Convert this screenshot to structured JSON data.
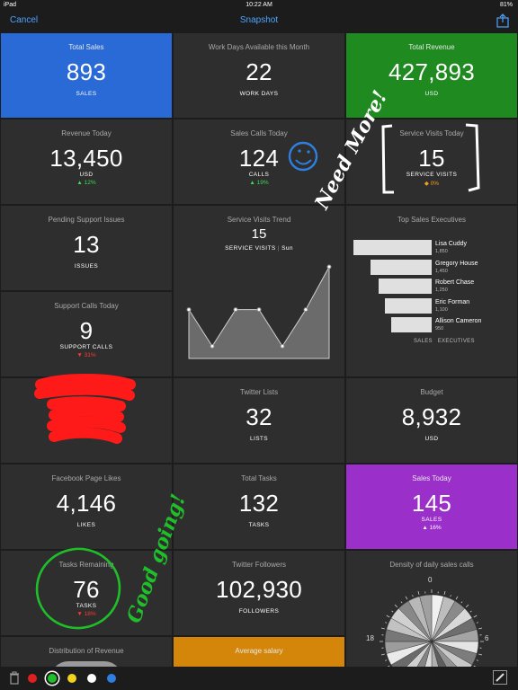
{
  "status": {
    "device": "iPad",
    "time": "10:22 AM",
    "battery": "81%"
  },
  "nav": {
    "cancel": "Cancel",
    "title": "Snapshot"
  },
  "tiles": {
    "total_sales": {
      "title": "Total Sales",
      "value": "893",
      "unit": "SALES"
    },
    "work_days": {
      "title": "Work Days Available this Month",
      "value": "22",
      "unit": "WORK DAYS"
    },
    "total_revenue": {
      "title": "Total Revenue",
      "value": "427,893",
      "unit": "USD"
    },
    "revenue_today": {
      "title": "Revenue Today",
      "value": "13,450",
      "unit": "USD",
      "change": "▲ 12%"
    },
    "sales_calls_today": {
      "title": "Sales Calls Today",
      "value": "124",
      "unit": "CALLS",
      "change": "▲ 19%"
    },
    "service_visits_today": {
      "title": "Service Visits Today",
      "value": "15",
      "unit": "SERVICE VISITS",
      "change": "◆ 0%"
    },
    "pending_support": {
      "title": "Pending Support Issues",
      "value": "13",
      "unit": "ISSUES"
    },
    "service_trend": {
      "title": "Service Visits Trend",
      "value": "15",
      "unit": "SERVICE VISITS",
      "day": "Sun"
    },
    "top_sales": {
      "title": "Top Sales Executives",
      "footer": "SALES   EXECUTIVES"
    },
    "support_calls": {
      "title": "Support Calls Today",
      "value": "9",
      "unit": "SUPPORT CALLS",
      "change": "▼ 31%"
    },
    "twitter_lists": {
      "title": "Twitter Lists",
      "value": "32",
      "unit": "LISTS"
    },
    "budget": {
      "title": "Budget",
      "value": "8,932",
      "unit": "USD"
    },
    "facebook": {
      "title": "Facebook Page Likes",
      "value": "4,146",
      "unit": "LIKES"
    },
    "total_tasks": {
      "title": "Total Tasks",
      "value": "132",
      "unit": "TASKS"
    },
    "sales_today": {
      "title": "Sales Today",
      "value": "145",
      "unit": "SALES",
      "change": "▲ 16%"
    },
    "tasks_remaining": {
      "title": "Tasks Remaining",
      "value": "76",
      "unit": "TASKS",
      "change": "▼ 18%"
    },
    "twitter_followers": {
      "title": "Twitter Followers",
      "value": "102,930",
      "unit": "FOLLOWERS"
    },
    "density": {
      "title": "Density of daily sales calls",
      "labels": [
        "0",
        "6",
        "18"
      ]
    },
    "distribution": {
      "title": "Distribution of Revenue"
    },
    "avg_salary": {
      "title": "Average salary"
    }
  },
  "executives": [
    {
      "name": "Lisa Cuddy",
      "value": "1,850",
      "sales": 1850
    },
    {
      "name": "Gregory House",
      "value": "1,450",
      "sales": 1450
    },
    {
      "name": "Robert Chase",
      "value": "1,250",
      "sales": 1250
    },
    {
      "name": "Eric Forman",
      "value": "1,100",
      "sales": 1100
    },
    {
      "name": "Allison Cameron",
      "value": "950",
      "sales": 950
    }
  ],
  "trend_points": [
    8,
    2,
    8,
    8,
    2,
    8,
    15
  ],
  "annotations": {
    "need_more": "Need More!",
    "good_going": "Good going!"
  },
  "palette": [
    "#e02020",
    "#1fbf2a",
    "#f2d21b",
    "#ffffff",
    "#2f7fe0"
  ],
  "colors": {
    "accent": "#4da3ff",
    "green": "#3ddc4c",
    "red": "#ff3b30"
  }
}
